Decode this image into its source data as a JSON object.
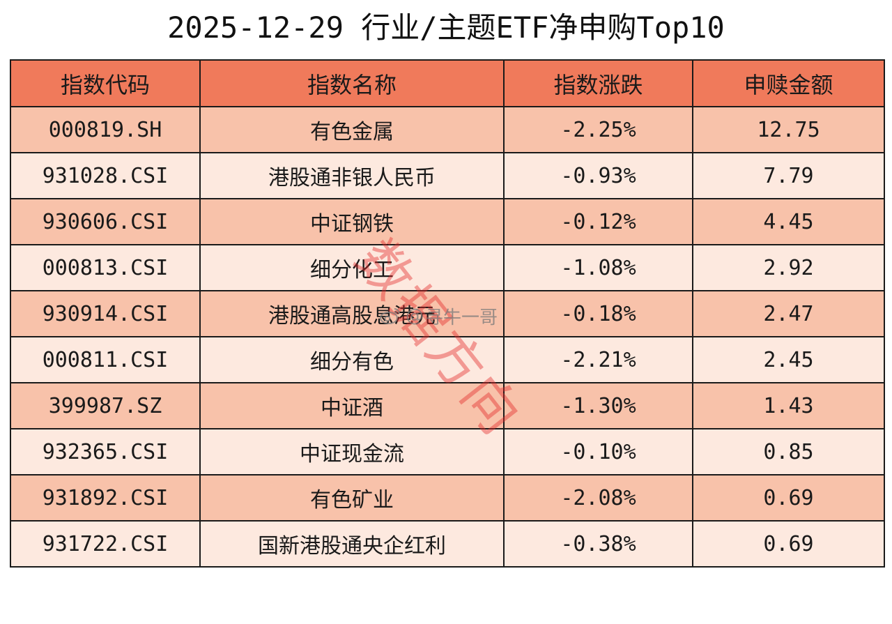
{
  "title": "2025-12-29 行业/主题ETF净申购Top10",
  "colors": {
    "header_bg": "#f07a5b",
    "row_odd_bg": "#f8c2aa",
    "row_even_bg": "#fde9df",
    "watermark_red": "#e22828"
  },
  "watermark": {
    "stamp": "数据方向",
    "user": "寻牛一哥",
    "icon": "weibo-icon"
  },
  "chart_data": {
    "type": "table",
    "title": "2025-12-29 行业/主题ETF净申购Top10",
    "columns": [
      "指数代码",
      "指数名称",
      "指数涨跌",
      "申赎金额"
    ],
    "rows": [
      [
        "000819.SH",
        "有色金属",
        "-2.25%",
        "12.75"
      ],
      [
        "931028.CSI",
        "港股通非银人民币",
        "-0.93%",
        "7.79"
      ],
      [
        "930606.CSI",
        "中证钢铁",
        "-0.12%",
        "4.45"
      ],
      [
        "000813.CSI",
        "细分化工",
        "-1.08%",
        "2.92"
      ],
      [
        "930914.CSI",
        "港股通高股息港元",
        "-0.18%",
        "2.47"
      ],
      [
        "000811.CSI",
        "细分有色",
        "-2.21%",
        "2.45"
      ],
      [
        "399987.SZ",
        "中证酒",
        "-1.30%",
        "1.43"
      ],
      [
        "932365.CSI",
        "中证现金流",
        "-0.10%",
        "0.85"
      ],
      [
        "931892.CSI",
        "有色矿业",
        "-2.08%",
        "0.69"
      ],
      [
        "931722.CSI",
        "国新港股通央企红利",
        "-0.38%",
        "0.69"
      ]
    ]
  }
}
